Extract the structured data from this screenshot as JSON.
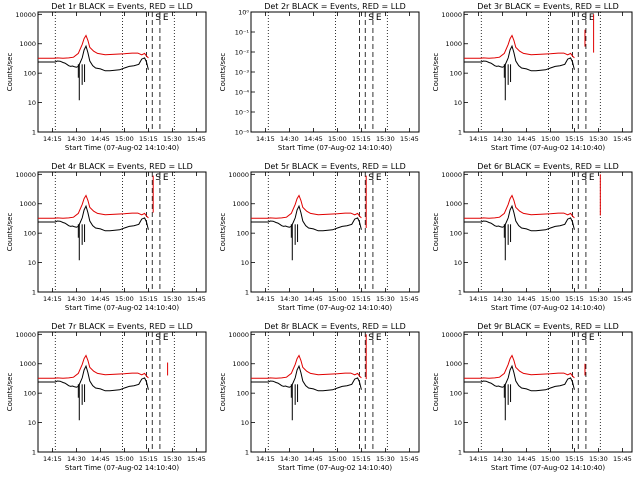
{
  "colors": {
    "events": "#000000",
    "lld": "#e00000",
    "background": "#ffffff"
  },
  "chart_data": [
    {
      "type": "line",
      "title": "Det 1r BLACK = Events, RED = LLD",
      "xlabel": "Start Time (07-Aug-02 14:10:40)",
      "ylabel": "Counts/sec",
      "xticks": [
        "14:15",
        "14:30",
        "14:45",
        "15:00",
        "15:15",
        "15:30",
        "15:45"
      ],
      "yticks": [
        "1",
        "10",
        "100",
        "1000",
        "10000"
      ],
      "yscale": "log",
      "xlim": [
        14.1,
        15.85
      ],
      "ylim": [
        1,
        12000
      ],
      "markers": [
        "S",
        "E"
      ],
      "lld_spike": [],
      "has_data": true
    },
    {
      "type": "line",
      "title": "Det 2r BLACK = Events, RED = LLD",
      "xlabel": "Start Time (07-Aug-02 14:10:40)",
      "ylabel": "Counts/sec",
      "xticks": [
        "14:15",
        "14:30",
        "14:45",
        "15:00",
        "15:15",
        "15:30",
        "15:45"
      ],
      "yticks": [
        "10⁻⁶",
        "10⁻⁵",
        "10⁻⁴",
        "10⁻³",
        "10⁻²",
        "10⁻¹",
        "10⁰"
      ],
      "yscale": "log",
      "xlim": [
        14.1,
        15.85
      ],
      "ylim": [
        1,
        1e-06
      ],
      "markers": [
        "S",
        "E"
      ],
      "lld_spike": [],
      "has_data": false
    },
    {
      "type": "line",
      "title": "Det 3r BLACK = Events, RED = LLD",
      "xlabel": "Start Time (07-Aug-02 14:10:40)",
      "ylabel": "Counts/sec",
      "xticks": [
        "14:15",
        "14:30",
        "14:45",
        "15:00",
        "15:15",
        "15:30",
        "15:45"
      ],
      "yticks": [
        "1",
        "10",
        "100",
        "1000",
        "10000"
      ],
      "yscale": "log",
      "xlim": [
        14.1,
        15.85
      ],
      "ylim": [
        1,
        12000
      ],
      "markers": [
        "S",
        "E"
      ],
      "lld_spike": [
        [
          15.36,
          800,
          3000
        ],
        [
          15.45,
          500,
          10000
        ]
      ],
      "has_data": true
    },
    {
      "type": "line",
      "title": "Det 4r BLACK = Events, RED = LLD",
      "xlabel": "Start Time (07-Aug-02 14:10:40)",
      "ylabel": "Counts/sec",
      "xticks": [
        "14:15",
        "14:30",
        "14:45",
        "15:00",
        "15:15",
        "15:30",
        "15:45"
      ],
      "yticks": [
        "1",
        "10",
        "100",
        "1000",
        "10000"
      ],
      "yscale": "log",
      "xlim": [
        14.1,
        15.85
      ],
      "ylim": [
        1,
        12000
      ],
      "markers": [
        "S",
        "E"
      ],
      "lld_spike": [
        [
          15.3,
          500,
          9000
        ]
      ],
      "has_data": true
    },
    {
      "type": "line",
      "title": "Det 5r BLACK = Events, RED = LLD",
      "xlabel": "Start Time (07-Aug-02 14:10:40)",
      "ylabel": "Counts/sec",
      "xticks": [
        "14:15",
        "14:30",
        "14:45",
        "15:00",
        "15:15",
        "15:30",
        "15:45"
      ],
      "yticks": [
        "1",
        "10",
        "100",
        "1000",
        "10000"
      ],
      "yscale": "log",
      "xlim": [
        14.1,
        15.85
      ],
      "ylim": [
        1,
        12000
      ],
      "markers": [
        "S",
        "E"
      ],
      "lld_spike": [
        [
          15.3,
          150,
          9000
        ]
      ],
      "has_data": true
    },
    {
      "type": "line",
      "title": "Det 6r BLACK = Events, RED = LLD",
      "xlabel": "Start Time (07-Aug-02 14:10:40)",
      "ylabel": "Counts/sec",
      "xticks": [
        "14:15",
        "14:30",
        "14:45",
        "15:00",
        "15:15",
        "15:30",
        "15:45"
      ],
      "yticks": [
        "1",
        "10",
        "100",
        "1000",
        "10000"
      ],
      "yscale": "log",
      "xlim": [
        14.1,
        15.85
      ],
      "ylim": [
        1,
        12000
      ],
      "markers": [
        "S",
        "E"
      ],
      "lld_spike": [
        [
          15.52,
          400,
          10000
        ]
      ],
      "has_data": true
    },
    {
      "type": "line",
      "title": "Det 7r BLACK = Events, RED = LLD",
      "xlabel": "Start Time (07-Aug-02 14:10:40)",
      "ylabel": "Counts/sec",
      "xticks": [
        "14:15",
        "14:30",
        "14:45",
        "15:00",
        "15:15",
        "15:30",
        "15:45"
      ],
      "yticks": [
        "1",
        "10",
        "100",
        "1000",
        "10000"
      ],
      "yscale": "log",
      "xlim": [
        14.1,
        15.85
      ],
      "ylim": [
        1,
        12000
      ],
      "markers": [
        "S",
        "E"
      ],
      "lld_spike": [
        [
          15.45,
          400,
          1100
        ]
      ],
      "has_data": true
    },
    {
      "type": "line",
      "title": "Det 8r BLACK = Events, RED = LLD",
      "xlabel": "Start Time (07-Aug-02 14:10:40)",
      "ylabel": "Counts/sec",
      "xticks": [
        "14:15",
        "14:30",
        "14:45",
        "15:00",
        "15:15",
        "15:30",
        "15:45"
      ],
      "yticks": [
        "1",
        "10",
        "100",
        "1000",
        "10000"
      ],
      "yscale": "log",
      "xlim": [
        14.1,
        15.85
      ],
      "ylim": [
        1,
        12000
      ],
      "markers": [
        "S",
        "E"
      ],
      "lld_spike": [
        [
          15.3,
          300,
          10000
        ]
      ],
      "has_data": true
    },
    {
      "type": "line",
      "title": "Det 9r BLACK = Events, RED = LLD",
      "xlabel": "Start Time (07-Aug-02 14:10:40)",
      "ylabel": "Counts/sec",
      "xticks": [
        "14:15",
        "14:30",
        "14:45",
        "15:00",
        "15:15",
        "15:30",
        "15:45"
      ],
      "yticks": [
        "1",
        "10",
        "100",
        "1000",
        "10000"
      ],
      "yscale": "log",
      "xlim": [
        14.1,
        15.85
      ],
      "ylim": [
        1,
        12000
      ],
      "markers": [
        "S",
        "E"
      ],
      "lld_spike": [
        [
          15.36,
          400,
          1000
        ]
      ],
      "has_data": true
    }
  ],
  "series_profile": {
    "events": [
      [
        14.1,
        240
      ],
      [
        14.28,
        240
      ],
      [
        14.3,
        260
      ],
      [
        14.33,
        255
      ],
      [
        14.36,
        230
      ],
      [
        14.38,
        220
      ],
      [
        14.4,
        200
      ],
      [
        14.42,
        180
      ],
      [
        14.44,
        170
      ],
      [
        14.46,
        175
      ],
      [
        14.48,
        165
      ],
      [
        14.5,
        160
      ],
      [
        14.52,
        170
      ],
      [
        14.54,
        230
      ],
      [
        14.56,
        330
      ],
      [
        14.58,
        620
      ],
      [
        14.6,
        830
      ],
      [
        14.62,
        500
      ],
      [
        14.64,
        260
      ],
      [
        14.67,
        180
      ],
      [
        14.7,
        150
      ],
      [
        14.75,
        140
      ],
      [
        14.8,
        120
      ],
      [
        14.85,
        120
      ],
      [
        14.9,
        125
      ],
      [
        14.95,
        130
      ],
      [
        15.0,
        150
      ],
      [
        15.05,
        170
      ],
      [
        15.1,
        180
      ],
      [
        15.15,
        200
      ],
      [
        15.18,
        300
      ],
      [
        15.21,
        330
      ],
      [
        15.23,
        240
      ],
      [
        15.25,
        130
      ]
    ],
    "lld": [
      [
        14.1,
        320
      ],
      [
        14.28,
        320
      ],
      [
        14.3,
        330
      ],
      [
        14.36,
        320
      ],
      [
        14.42,
        330
      ],
      [
        14.47,
        350
      ],
      [
        14.52,
        470
      ],
      [
        14.56,
        950
      ],
      [
        14.58,
        1500
      ],
      [
        14.6,
        1900
      ],
      [
        14.62,
        1300
      ],
      [
        14.64,
        750
      ],
      [
        14.68,
        560
      ],
      [
        14.72,
        470
      ],
      [
        14.8,
        420
      ],
      [
        14.9,
        440
      ],
      [
        15.0,
        460
      ],
      [
        15.08,
        480
      ],
      [
        15.14,
        480
      ],
      [
        15.18,
        420
      ],
      [
        15.21,
        470
      ],
      [
        15.23,
        380
      ],
      [
        15.25,
        330
      ]
    ],
    "dips": [
      [
        14.53,
        12
      ],
      [
        14.585,
        50
      ],
      [
        14.52,
        70
      ],
      [
        14.56,
        40
      ]
    ]
  },
  "marker_times": {
    "dotted": [
      14.28,
      14.98,
      15.52
    ],
    "dashed": [
      15.23,
      15.29,
      15.37
    ]
  }
}
